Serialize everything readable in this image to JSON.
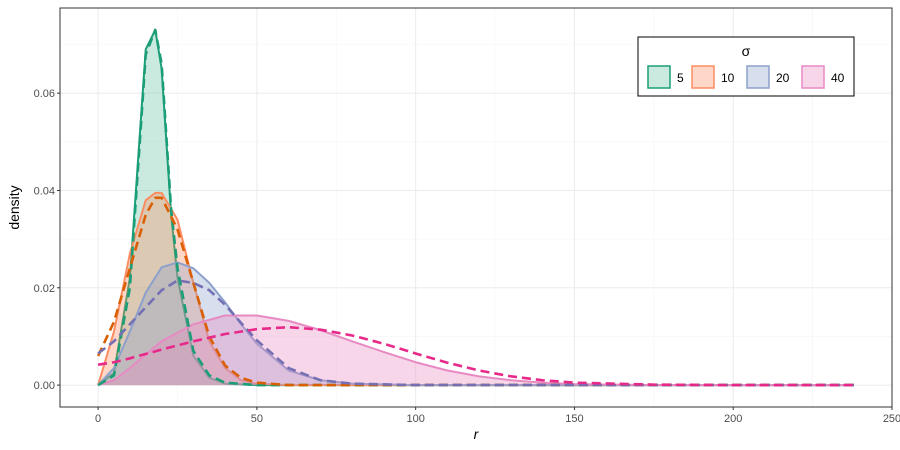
{
  "chart_data": {
    "type": "area",
    "xlabel": "r",
    "ylabel": "density",
    "xlim": [
      -12,
      250
    ],
    "ylim": [
      -0.0045,
      0.0775
    ],
    "x_ticks": [
      0,
      50,
      100,
      150,
      200,
      250
    ],
    "x_tick_labels": [
      "0",
      "50",
      "100",
      "150",
      "200",
      "250"
    ],
    "y_ticks": [
      0,
      0.02,
      0.04,
      0.06
    ],
    "y_tick_labels": [
      "0.00",
      "0.02",
      "0.04",
      "0.06"
    ],
    "grid": true,
    "legend": {
      "title": "σ",
      "placement": "top-right",
      "orientation": "horizontal"
    },
    "series": [
      {
        "name": "5",
        "color": "#1b9e77",
        "fill": "#66c2a5",
        "dash_color": "#1b9e77",
        "x": [
          0,
          5,
          10,
          15,
          18,
          20,
          23,
          25,
          30,
          35,
          40,
          50,
          60,
          80,
          100,
          150,
          200,
          238
        ],
        "y": [
          0,
          0.0025,
          0.022,
          0.069,
          0.073,
          0.065,
          0.035,
          0.022,
          0.006,
          0.0015,
          0.0003,
          0,
          0,
          0,
          0,
          0,
          0,
          0
        ],
        "fit": [
          0,
          0.002,
          0.02,
          0.068,
          0.073,
          0.066,
          0.036,
          0.024,
          0.007,
          0.002,
          0.0005,
          0,
          0,
          0,
          0,
          0,
          0,
          0
        ]
      },
      {
        "name": "10",
        "color": "#fc8d62",
        "fill": "#fc8d62",
        "dash_color": "#d95f02",
        "x": [
          0,
          5,
          10,
          15,
          18,
          20,
          25,
          30,
          35,
          40,
          45,
          50,
          60,
          80,
          100,
          150,
          200,
          238
        ],
        "y": [
          0,
          0.011,
          0.027,
          0.038,
          0.0395,
          0.0395,
          0.034,
          0.021,
          0.009,
          0.0035,
          0.001,
          0.0003,
          0,
          0,
          0,
          0,
          0,
          0
        ],
        "fit": [
          0.006,
          0.013,
          0.024,
          0.035,
          0.0385,
          0.0385,
          0.032,
          0.021,
          0.01,
          0.004,
          0.0015,
          0.0005,
          0,
          0,
          0,
          0,
          0,
          0
        ]
      },
      {
        "name": "20",
        "color": "#8da0cb",
        "fill": "#8da0cb",
        "dash_color": "#7570b3",
        "x": [
          0,
          5,
          10,
          15,
          20,
          25,
          30,
          35,
          40,
          45,
          50,
          60,
          70,
          80,
          100,
          150,
          200,
          238
        ],
        "y": [
          0,
          0.0035,
          0.011,
          0.019,
          0.0242,
          0.0252,
          0.024,
          0.021,
          0.017,
          0.0125,
          0.0085,
          0.003,
          0.001,
          0.0003,
          0,
          0,
          0,
          0
        ],
        "fit": [
          0.0065,
          0.009,
          0.0125,
          0.016,
          0.0195,
          0.0215,
          0.021,
          0.0195,
          0.0165,
          0.0128,
          0.0092,
          0.0035,
          0.001,
          0.0003,
          0,
          0,
          0,
          0
        ]
      },
      {
        "name": "40",
        "color": "#e78ac3",
        "fill": "#e78ac3",
        "dash_color": "#e7298a",
        "x": [
          0,
          5,
          10,
          20,
          30,
          40,
          50,
          60,
          70,
          80,
          90,
          100,
          110,
          120,
          130,
          140,
          150,
          175,
          200,
          238
        ],
        "y": [
          0,
          0.001,
          0.0035,
          0.009,
          0.0125,
          0.0143,
          0.0143,
          0.0132,
          0.0113,
          0.009,
          0.0068,
          0.0047,
          0.003,
          0.0018,
          0.001,
          0.0005,
          0.0002,
          0,
          0,
          0
        ],
        "fit": [
          0.0042,
          0.0047,
          0.0055,
          0.0073,
          0.009,
          0.0105,
          0.0115,
          0.0119,
          0.0114,
          0.0102,
          0.0085,
          0.0065,
          0.0046,
          0.003,
          0.0018,
          0.001,
          0.0005,
          0.0001,
          0,
          0
        ]
      }
    ]
  }
}
